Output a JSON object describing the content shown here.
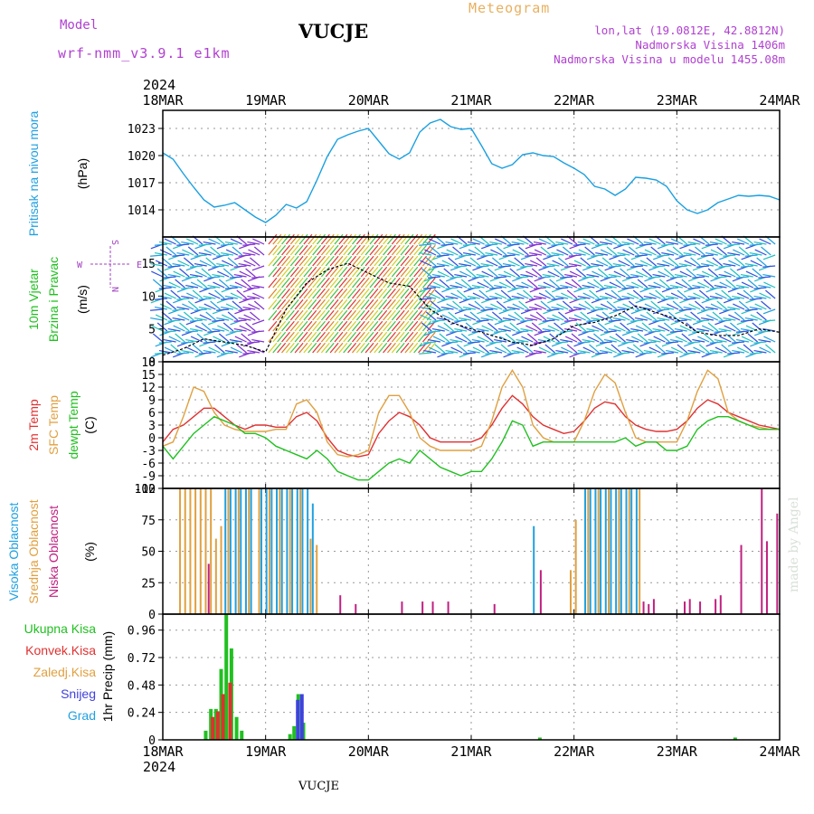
{
  "header": {
    "model_label": "Model",
    "model_name": "wrf-nmm_v3.9.1 e1km",
    "station": "VUCJE",
    "product": "Meteogram",
    "lonlat": "lon,lat (19.0812E, 42.8812N)",
    "elevation": "Nadmorska Visina 1406m",
    "model_elevation": "Nadmorska Visina u modelu 1455.08m",
    "year_top": "2024",
    "year_bottom": "2024",
    "footer_station": "VUCJE",
    "made_by": "made by Angel"
  },
  "colors": {
    "pressure": "#1aa0e0",
    "temp2m": "#e03030",
    "sfctemp": "#e0a040",
    "dewpt": "#20c020",
    "label_blue": "#20a0e0",
    "label_green": "#20c020",
    "label_orange": "#e0a040",
    "label_red": "#e03030",
    "label_purple": "#a040c0",
    "cloud_high": "#20a0e0",
    "cloud_mid": "#e0a040",
    "cloud_low": "#c02080",
    "precip_total": "#20c020",
    "precip_conv": "#e03030",
    "precip_snow": "#4040e0"
  },
  "chart_data": [
    {
      "type": "line",
      "panel": "pressure",
      "ylabel": "Pritisak na nivou mora",
      "unit": "(hPa)",
      "x_ticks": [
        "18MAR",
        "19MAR",
        "20MAR",
        "21MAR",
        "22MAR",
        "23MAR",
        "24MAR"
      ],
      "ylim": [
        1011,
        1025
      ],
      "y_ticks": [
        1014,
        1017,
        1020,
        1023
      ],
      "grid": true,
      "series": [
        {
          "color": "pressure",
          "x": [
            0,
            0.1,
            0.2,
            0.3,
            0.4,
            0.5,
            0.6,
            0.7,
            0.8,
            0.9,
            1.0,
            1.1,
            1.2,
            1.3,
            1.4,
            1.5,
            1.6,
            1.7,
            1.8,
            1.9,
            2.0,
            2.1,
            2.2,
            2.3,
            2.4,
            2.5,
            2.6,
            2.7,
            2.8,
            2.9,
            3.0,
            3.1,
            3.2,
            3.3,
            3.4,
            3.5,
            3.6,
            3.7,
            3.8,
            3.9,
            4.0,
            4.1,
            4.2,
            4.3,
            4.4,
            4.5,
            4.6,
            4.7,
            4.8,
            4.9,
            5.0,
            5.1,
            5.2,
            5.3,
            5.4,
            5.5,
            5.6,
            5.7,
            5.8,
            5.9,
            6.0
          ],
          "y": [
            1020.3,
            1019.6,
            1018.0,
            1016.5,
            1015.1,
            1014.3,
            1014.5,
            1014.8,
            1014.0,
            1013.2,
            1012.6,
            1013.4,
            1014.6,
            1014.2,
            1014.9,
            1017.3,
            1019.9,
            1021.8,
            1022.3,
            1022.7,
            1023.0,
            1021.6,
            1020.2,
            1019.6,
            1020.3,
            1022.6,
            1023.6,
            1024.0,
            1023.2,
            1022.9,
            1023.0,
            1021.1,
            1019.1,
            1018.6,
            1019.0,
            1020.1,
            1020.3,
            1020.0,
            1019.9,
            1019.2,
            1018.6,
            1017.9,
            1016.6,
            1016.3,
            1015.6,
            1016.3,
            1017.6,
            1017.5,
            1017.3,
            1016.6,
            1015.0,
            1014.0,
            1013.6,
            1014.0,
            1014.8,
            1015.2,
            1015.6,
            1015.5,
            1015.6,
            1015.5,
            1015.1
          ]
        }
      ]
    },
    {
      "type": "line",
      "panel": "wind",
      "ylabel_lines": [
        "10m Vjetar",
        "Brzina i Pravac"
      ],
      "unit": "(m/s)",
      "compass_labels": [
        "S",
        "W",
        "E",
        "N"
      ],
      "ylim": [
        0,
        19
      ],
      "y_ticks": [
        0,
        5,
        10,
        15
      ],
      "series": [
        {
          "name": "speed",
          "color": "#000000",
          "x": [
            0,
            0.2,
            0.4,
            0.6,
            0.8,
            1.0,
            1.2,
            1.4,
            1.6,
            1.8,
            2.0,
            2.2,
            2.4,
            2.6,
            2.8,
            3.0,
            3.2,
            3.4,
            3.6,
            3.8,
            4.0,
            4.2,
            4.4,
            4.6,
            4.8,
            5.0,
            5.2,
            5.4,
            5.6,
            5.8,
            6.0
          ],
          "y": [
            1.0,
            2.0,
            3.5,
            3.0,
            2.5,
            1.5,
            8.0,
            12.0,
            14.0,
            15.0,
            13.5,
            12.0,
            11.5,
            8.0,
            6.0,
            5.0,
            4.0,
            3.0,
            2.5,
            3.5,
            5.5,
            6.0,
            7.0,
            8.5,
            7.5,
            6.5,
            4.5,
            4.0,
            4.0,
            5.0,
            4.5
          ]
        }
      ]
    },
    {
      "type": "line",
      "panel": "temperature",
      "ylabel_lines": [
        "2m Temp",
        "SFC Temp",
        "dewpt Temp"
      ],
      "unit": "(C)",
      "ylim": [
        -12,
        18
      ],
      "y_ticks": [
        -12,
        -9,
        -6,
        -3,
        0,
        3,
        6,
        9,
        12,
        15,
        18
      ],
      "grid": true,
      "series": [
        {
          "name": "2m Temp",
          "color": "temp2m",
          "x": [
            0,
            0.1,
            0.2,
            0.3,
            0.4,
            0.5,
            0.6,
            0.7,
            0.8,
            0.9,
            1.0,
            1.1,
            1.2,
            1.3,
            1.4,
            1.5,
            1.6,
            1.7,
            1.8,
            1.9,
            2.0,
            2.1,
            2.2,
            2.3,
            2.4,
            2.5,
            2.6,
            2.7,
            2.8,
            2.9,
            3.0,
            3.1,
            3.2,
            3.3,
            3.4,
            3.5,
            3.6,
            3.7,
            3.8,
            3.9,
            4.0,
            4.1,
            4.2,
            4.3,
            4.4,
            4.5,
            4.6,
            4.7,
            4.8,
            4.9,
            5.0,
            5.1,
            5.2,
            5.3,
            5.4,
            5.5,
            5.6,
            5.7,
            5.8,
            5.9,
            6.0
          ],
          "y": [
            -1,
            2,
            3,
            5,
            7,
            7,
            5,
            3,
            2,
            3,
            3,
            2.5,
            2.5,
            5,
            6,
            4,
            0,
            -3,
            -4,
            -4.5,
            -4,
            1,
            4,
            6,
            5,
            3,
            0,
            -1,
            -1,
            -1,
            -1,
            0,
            3,
            7,
            10,
            8,
            5,
            3,
            2,
            1,
            1.5,
            4,
            7,
            8.5,
            8,
            5,
            3,
            2,
            1.5,
            1.5,
            2,
            4,
            7,
            9,
            8,
            6,
            5,
            4,
            3,
            2.5,
            2
          ]
        },
        {
          "name": "SFC Temp",
          "color": "sfctemp",
          "x": [
            0,
            0.1,
            0.2,
            0.3,
            0.4,
            0.5,
            0.6,
            0.7,
            0.8,
            0.9,
            1.0,
            1.1,
            1.2,
            1.3,
            1.4,
            1.5,
            1.6,
            1.7,
            1.8,
            1.9,
            2.0,
            2.1,
            2.2,
            2.3,
            2.4,
            2.5,
            2.6,
            2.7,
            2.8,
            2.9,
            3.0,
            3.1,
            3.2,
            3.3,
            3.4,
            3.5,
            3.6,
            3.7,
            3.8,
            3.9,
            4.0,
            4.1,
            4.2,
            4.3,
            4.4,
            4.5,
            4.6,
            4.7,
            4.8,
            4.9,
            5.0,
            5.1,
            5.2,
            5.3,
            5.4,
            5.5,
            5.6,
            5.7,
            5.8,
            5.9,
            6.0
          ],
          "y": [
            -2,
            -1,
            5,
            12,
            11,
            6,
            3,
            2,
            1.5,
            1.5,
            1.5,
            2,
            2,
            8,
            9,
            6,
            -1,
            -4,
            -4.5,
            -4,
            -3,
            6,
            10,
            10,
            6,
            0,
            -2,
            -3,
            -3,
            -3,
            -3,
            -2,
            4,
            12,
            16,
            12,
            3,
            0,
            -1,
            -1,
            -1,
            4,
            11,
            15,
            13,
            6,
            0,
            -1,
            -1,
            -1,
            -1,
            4,
            11,
            16,
            14,
            6,
            4,
            3,
            2.5,
            2,
            2
          ]
        },
        {
          "name": "dewpt Temp",
          "color": "dewpt",
          "x": [
            0,
            0.1,
            0.2,
            0.3,
            0.4,
            0.5,
            0.6,
            0.7,
            0.8,
            0.9,
            1.0,
            1.1,
            1.2,
            1.3,
            1.4,
            1.5,
            1.6,
            1.7,
            1.8,
            1.9,
            2.0,
            2.1,
            2.2,
            2.3,
            2.4,
            2.5,
            2.6,
            2.7,
            2.8,
            2.9,
            3.0,
            3.1,
            3.2,
            3.3,
            3.4,
            3.5,
            3.6,
            3.7,
            3.8,
            3.9,
            4.0,
            4.1,
            4.2,
            4.3,
            4.4,
            4.5,
            4.6,
            4.7,
            4.8,
            4.9,
            5.0,
            5.1,
            5.2,
            5.3,
            5.4,
            5.5,
            5.6,
            5.7,
            5.8,
            5.9,
            6.0
          ],
          "y": [
            -2,
            -5,
            -2,
            1,
            3,
            5,
            4,
            3,
            1,
            1,
            0,
            -2,
            -3,
            -4,
            -5,
            -3,
            -5,
            -8,
            -9,
            -10,
            -10,
            -8,
            -6,
            -5,
            -6,
            -3,
            -5,
            -7,
            -8,
            -9,
            -8,
            -8,
            -5,
            -1,
            4,
            3,
            -2,
            -1,
            -1,
            -1,
            -1,
            -1,
            -1,
            -1,
            -1,
            0,
            -2,
            -1,
            -1,
            -3,
            -3,
            -2,
            2,
            4,
            5,
            5,
            4,
            3,
            2,
            2,
            2
          ]
        }
      ]
    },
    {
      "type": "bar",
      "panel": "clouds",
      "ylabel_lines": [
        "Visoka Oblacnost",
        "Srednja Oblacnost",
        "Niska Oblacnost"
      ],
      "unit": "(%)",
      "ylim": [
        0,
        100
      ],
      "y_ticks": [
        0,
        25,
        50,
        75,
        100
      ],
      "grid": true,
      "series": [
        {
          "name": "Visoka Oblacnost",
          "color": "cloud_high",
          "x": [
            0.6,
            0.65,
            0.7,
            0.75,
            0.8,
            0.85,
            0.95,
            1.0,
            1.05,
            1.1,
            1.15,
            1.2,
            1.25,
            1.3,
            1.35,
            1.4,
            1.45,
            3.6,
            4.1,
            4.15,
            4.2,
            4.25,
            4.3,
            4.35,
            4.4,
            4.45,
            4.5,
            4.55,
            4.6
          ],
          "values": [
            100,
            100,
            100,
            100,
            100,
            100,
            100,
            100,
            100,
            100,
            100,
            100,
            100,
            100,
            100,
            100,
            88,
            70,
            100,
            100,
            100,
            100,
            100,
            100,
            100,
            100,
            100,
            100,
            100
          ]
        },
        {
          "name": "Srednja Oblacnost",
          "color": "cloud_mid",
          "x": [
            0.15,
            0.2,
            0.25,
            0.3,
            0.35,
            0.4,
            0.45,
            0.5,
            0.55,
            0.62,
            0.72,
            0.82,
            0.92,
            1.02,
            1.12,
            1.22,
            1.32,
            1.42,
            1.48,
            3.95,
            4.0,
            4.12,
            4.22,
            4.32,
            4.42,
            4.52,
            4.62
          ],
          "values": [
            100,
            100,
            100,
            100,
            100,
            100,
            100,
            60,
            70,
            100,
            100,
            100,
            100,
            100,
            100,
            100,
            100,
            60,
            55,
            35,
            75,
            100,
            100,
            100,
            100,
            100,
            100
          ]
        },
        {
          "name": "Niska Oblacnost",
          "color": "cloud_low",
          "x": [
            0.42,
            1.7,
            1.85,
            2.3,
            2.5,
            2.6,
            2.75,
            3.2,
            3.65,
            4.65,
            4.7,
            4.75,
            5.05,
            5.1,
            5.2,
            5.35,
            5.4,
            5.6,
            5.8,
            5.85,
            5.95
          ],
          "values": [
            40,
            15,
            8,
            10,
            10,
            10,
            10,
            8,
            35,
            10,
            8,
            12,
            10,
            12,
            10,
            12,
            15,
            55,
            100,
            58,
            80
          ]
        }
      ]
    },
    {
      "type": "bar",
      "panel": "precip",
      "legend": [
        "Ukupna Kisa",
        "Konvek.Kisa",
        "Zaledj.Kisa",
        "Snijeg",
        "Grad"
      ],
      "unit": "1hr Precip (mm)",
      "ylim": [
        0,
        1.1
      ],
      "y_ticks": [
        0,
        0.24,
        0.48,
        0.72,
        0.96
      ],
      "grid": true,
      "series": [
        {
          "name": "Ukupna Kisa",
          "color": "precip_total",
          "x": [
            0.4,
            0.45,
            0.5,
            0.55,
            0.6,
            0.65,
            0.7,
            0.75,
            1.22,
            1.26,
            1.3,
            1.35,
            3.65,
            5.55
          ],
          "values": [
            0.08,
            0.27,
            0.27,
            0.62,
            1.1,
            0.8,
            0.2,
            0.08,
            0.05,
            0.12,
            0.4,
            0.15,
            0.02,
            0.02
          ]
        },
        {
          "name": "Konvek.Kisa",
          "color": "precip_conv",
          "x": [
            0.45,
            0.5,
            0.55,
            0.62
          ],
          "values": [
            0.2,
            0.25,
            0.4,
            0.5
          ]
        },
        {
          "name": "Snijeg",
          "color": "precip_snow",
          "x": [
            1.26,
            1.3
          ],
          "values": [
            0.35,
            0.4
          ]
        }
      ]
    }
  ]
}
